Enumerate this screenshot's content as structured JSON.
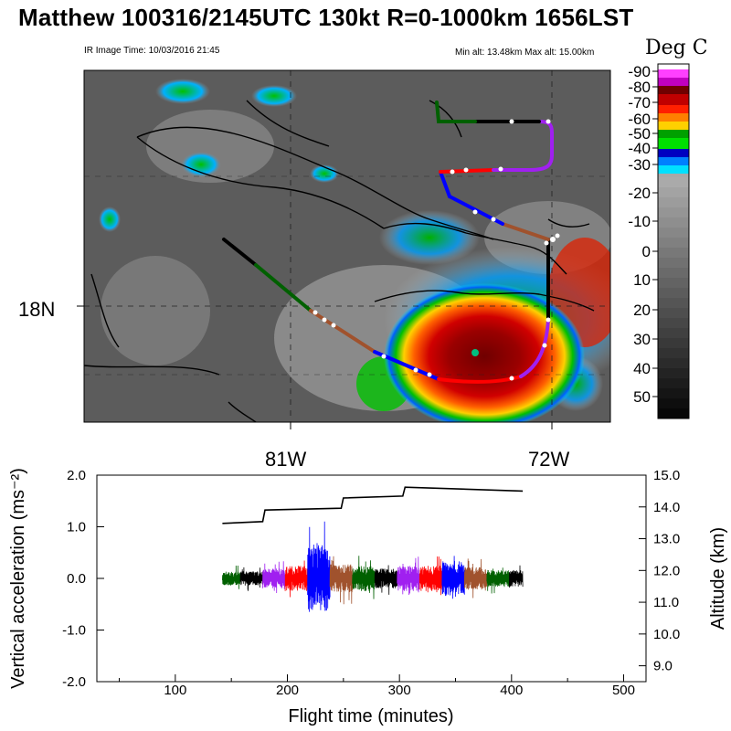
{
  "header": {
    "title": "Matthew 100316/2145UTC 130kt  R=0-1000km 1656LST",
    "ir_time": "IR Image Time: 10/03/2016 21:45",
    "alt_info": "Min alt: 13.48km  Max alt: 15.00km"
  },
  "colorbar": {
    "title": "Deg C",
    "ticks": [
      "-90",
      "-80",
      "-70",
      "-60",
      "-50",
      "-40",
      "-30",
      "-20",
      "-10",
      "0",
      "10",
      "20",
      "30",
      "40",
      "50"
    ],
    "colors": [
      "#ffffff",
      "#ff40ff",
      "#c000c0",
      "#700000",
      "#c00000",
      "#ff2000",
      "#ff8000",
      "#ffd000",
      "#00a000",
      "#00e000",
      "#0000c0",
      "#0080ff",
      "#00e0ff",
      "#a8a8a8"
    ]
  },
  "map": {
    "lat_label": "18N",
    "lon_labels": [
      "81W",
      "72W"
    ],
    "track_colors": [
      "#000000",
      "#006000",
      "#a0522d",
      "#0000ff",
      "#ff0000",
      "#a020f0"
    ]
  },
  "chart_data": {
    "type": "line",
    "xlabel": "Flight time (minutes)",
    "ylabel": "Vertical acceleration (ms⁻²)",
    "y2label": "Altitude (km)",
    "xlim": [
      30,
      520
    ],
    "ylim": [
      -2.0,
      2.0
    ],
    "y2lim": [
      8.5,
      15.0
    ],
    "xticks": [
      "100",
      "200",
      "300",
      "400",
      "500"
    ],
    "yticks": [
      "2.0",
      "1.0",
      "0.0",
      "-1.0",
      "-2.0"
    ],
    "y2ticks": [
      "15.0",
      "14.0",
      "13.0",
      "12.0",
      "11.0",
      "10.0",
      "9.0"
    ],
    "altitude": {
      "x": [
        142,
        178,
        180,
        248,
        250,
        303,
        305,
        410
      ],
      "y": [
        13.48,
        13.54,
        13.9,
        13.96,
        14.28,
        14.34,
        14.62,
        14.5
      ]
    },
    "acceleration_segments": [
      {
        "start": 142,
        "end": 158,
        "color": "#006000",
        "amp": 0.25
      },
      {
        "start": 158,
        "end": 178,
        "color": "#000000",
        "amp": 0.25
      },
      {
        "start": 178,
        "end": 198,
        "color": "#a020f0",
        "amp": 0.35
      },
      {
        "start": 198,
        "end": 218,
        "color": "#ff0000",
        "amp": 0.45
      },
      {
        "start": 218,
        "end": 238,
        "color": "#0000ff",
        "amp": 1.15
      },
      {
        "start": 238,
        "end": 258,
        "color": "#a0522d",
        "amp": 0.5
      },
      {
        "start": 258,
        "end": 278,
        "color": "#006000",
        "amp": 0.45
      },
      {
        "start": 278,
        "end": 298,
        "color": "#000000",
        "amp": 0.35
      },
      {
        "start": 298,
        "end": 318,
        "color": "#a020f0",
        "amp": 0.45
      },
      {
        "start": 318,
        "end": 338,
        "color": "#ff0000",
        "amp": 0.45
      },
      {
        "start": 338,
        "end": 358,
        "color": "#0000ff",
        "amp": 0.6
      },
      {
        "start": 358,
        "end": 378,
        "color": "#a0522d",
        "amp": 0.4
      },
      {
        "start": 378,
        "end": 398,
        "color": "#006000",
        "amp": 0.3
      },
      {
        "start": 398,
        "end": 410,
        "color": "#000000",
        "amp": 0.3
      }
    ]
  }
}
